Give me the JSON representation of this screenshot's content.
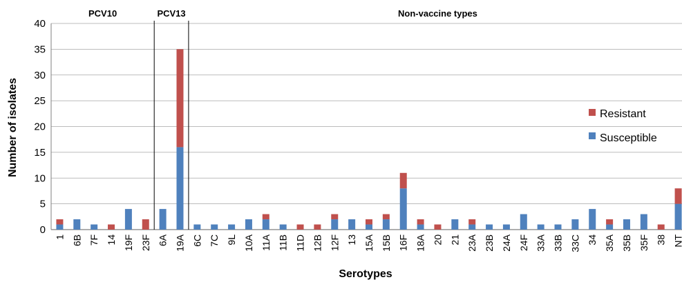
{
  "chart_data": {
    "type": "bar",
    "stacked": true,
    "xlabel": "Serotypes",
    "ylabel": "Number of isolates",
    "ylim": [
      0,
      40
    ],
    "yticks": [
      0,
      5,
      10,
      15,
      20,
      25,
      30,
      35,
      40
    ],
    "grid": true,
    "legend_position": "right",
    "categories": [
      "1",
      "6B",
      "7F",
      "14",
      "19F",
      "23F",
      "6A",
      "19A",
      "6C",
      "7C",
      "9L",
      "10A",
      "11A",
      "11B",
      "11D",
      "12B",
      "12F",
      "13",
      "15A",
      "15B",
      "16F",
      "18A",
      "20",
      "21",
      "23A",
      "23B",
      "24A",
      "24F",
      "33A",
      "33B",
      "33C",
      "34",
      "35A",
      "35B",
      "35F",
      "38",
      "NT"
    ],
    "series": [
      {
        "name": "Susceptible",
        "color": "#4f81bd",
        "values": [
          1,
          2,
          1,
          0,
          4,
          0,
          4,
          16,
          1,
          1,
          1,
          2,
          2,
          1,
          0,
          0,
          2,
          2,
          1,
          2,
          8,
          1,
          0,
          2,
          1,
          1,
          1,
          3,
          1,
          1,
          2,
          4,
          1,
          2,
          3,
          0,
          5
        ]
      },
      {
        "name": "Resistant",
        "color": "#c0504d",
        "values": [
          1,
          0,
          0,
          1,
          0,
          2,
          0,
          19,
          0,
          0,
          0,
          0,
          1,
          0,
          1,
          1,
          1,
          0,
          1,
          1,
          3,
          1,
          1,
          0,
          1,
          0,
          0,
          0,
          0,
          0,
          0,
          0,
          1,
          0,
          0,
          1,
          3
        ]
      }
    ],
    "groups": [
      {
        "label": "PCV10",
        "from": "1",
        "to": "23F"
      },
      {
        "label": "PCV13",
        "from": "6A",
        "to": "19A"
      },
      {
        "label": "Non-vaccine types",
        "from": "6C",
        "to": "NT"
      }
    ]
  }
}
